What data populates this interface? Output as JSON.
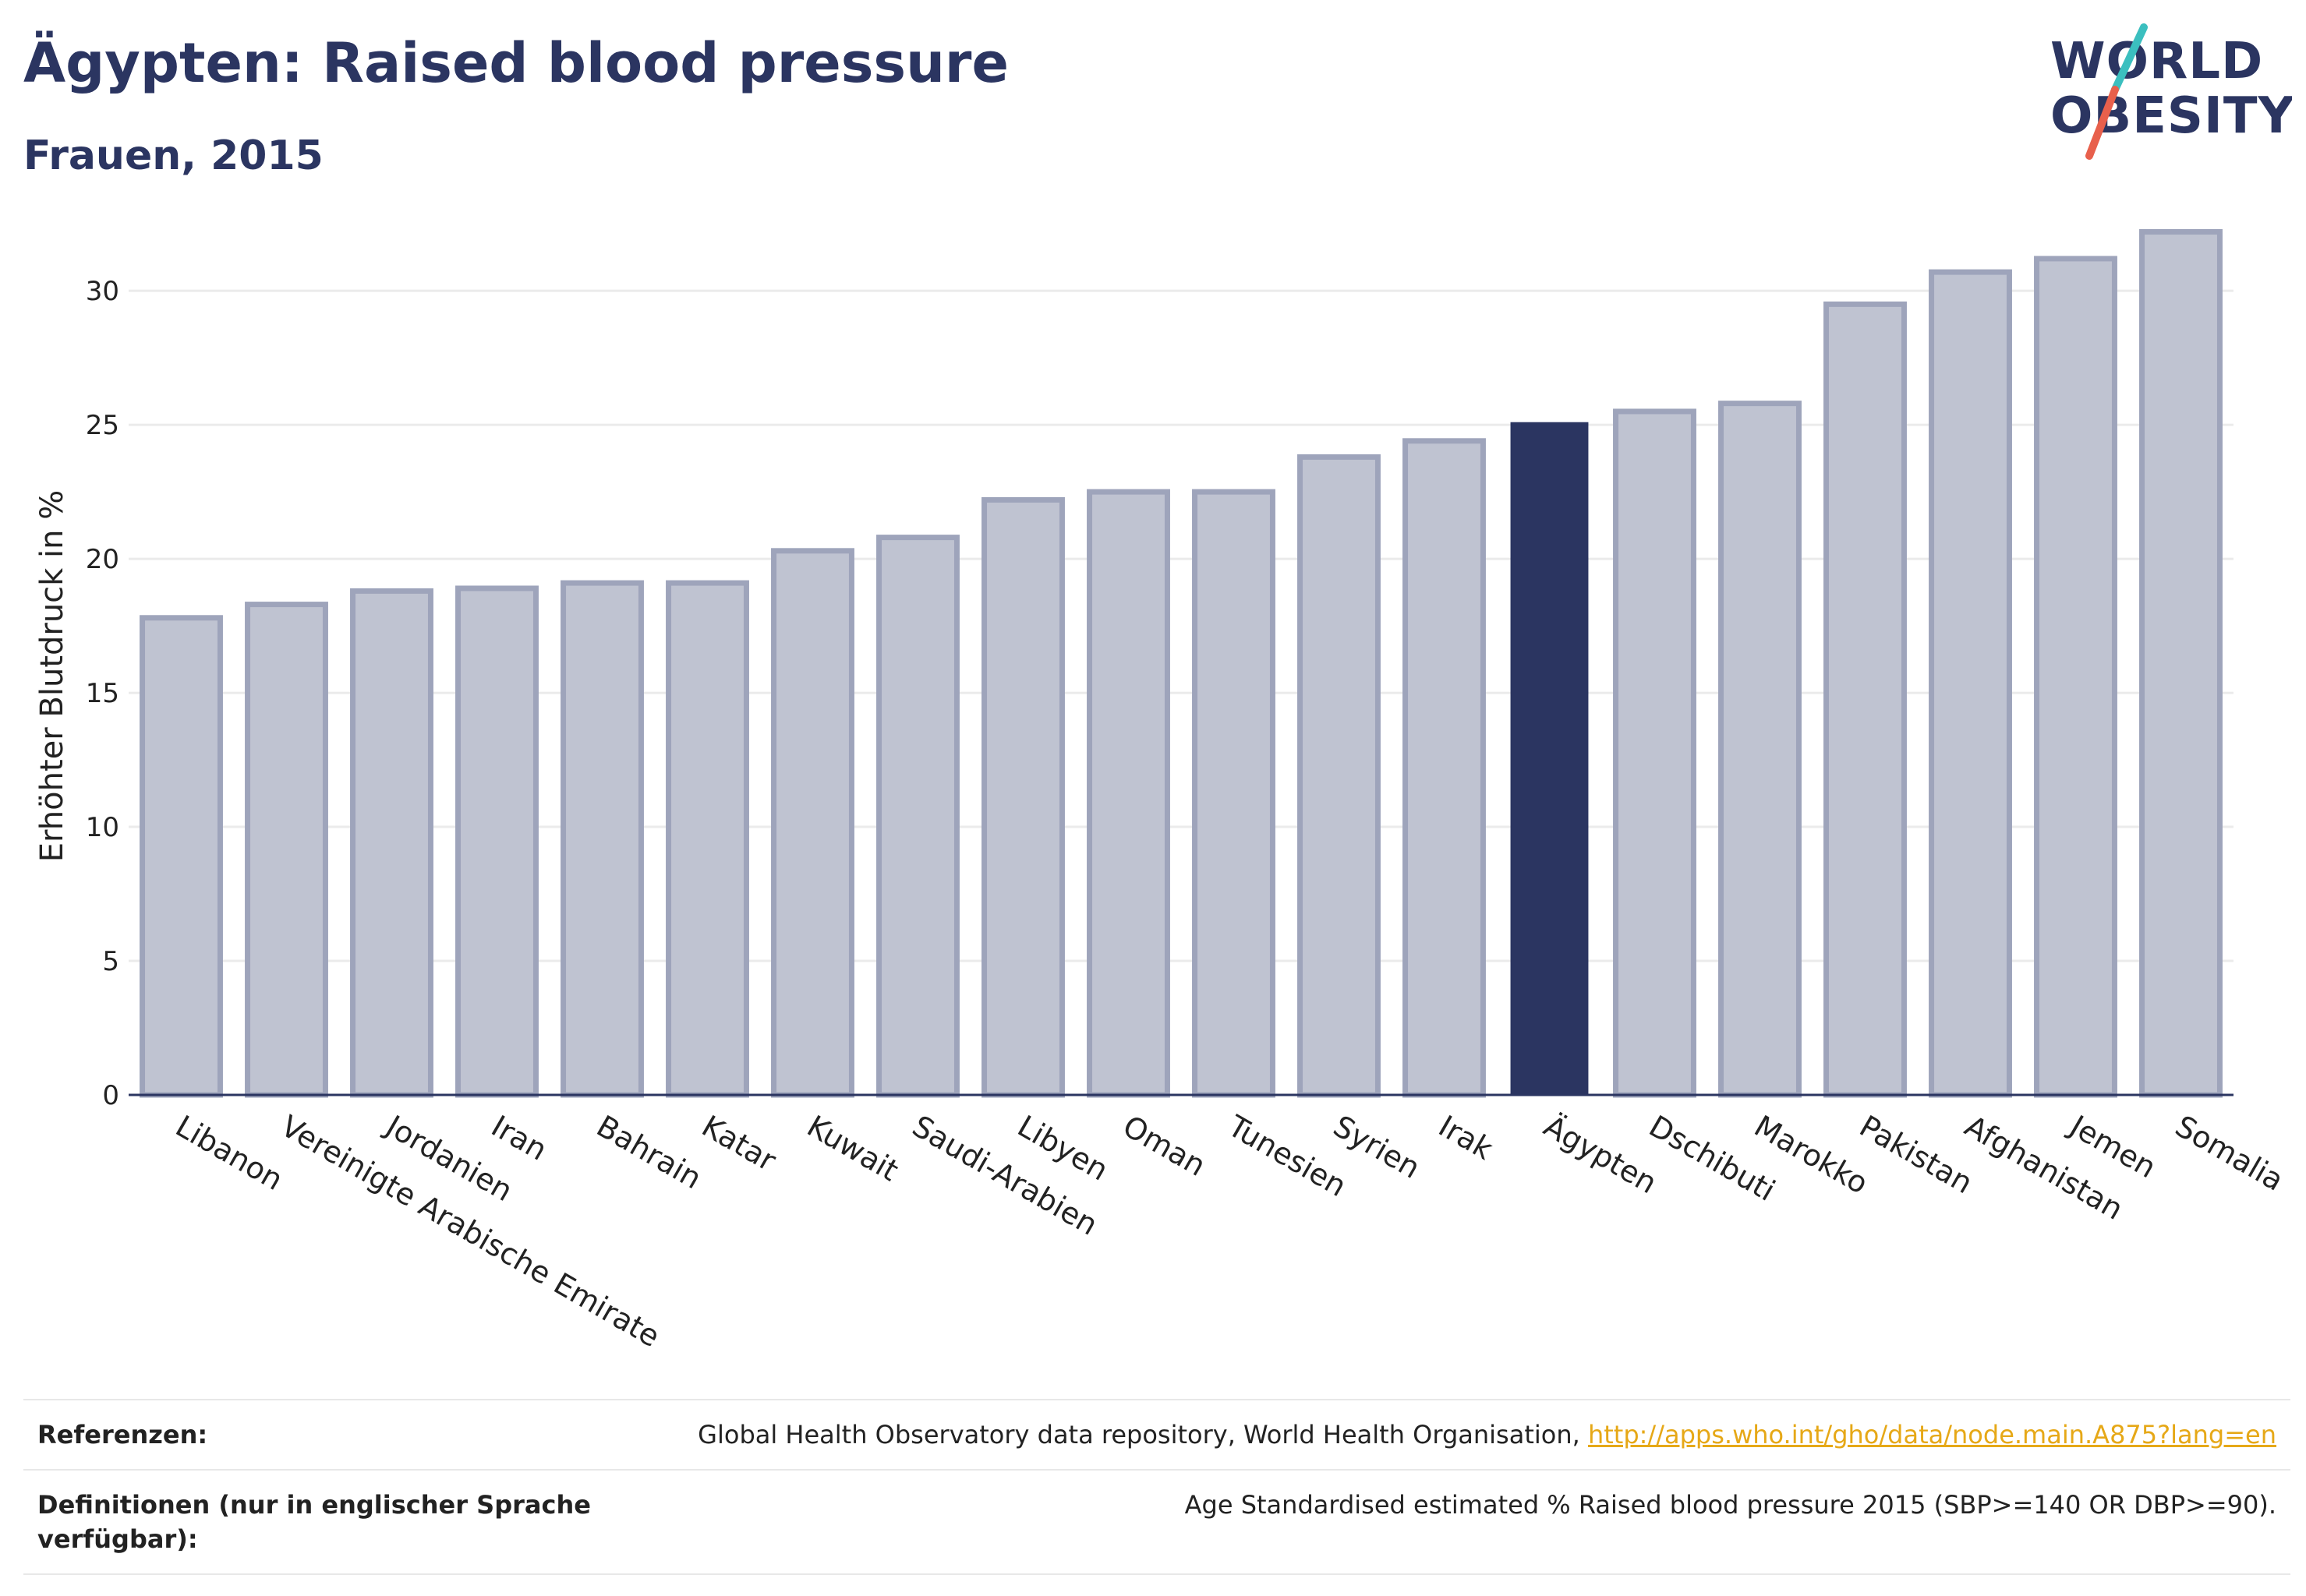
{
  "header": {
    "title": "Ägypten: Raised blood pressure",
    "subtitle": "Frauen, 2015"
  },
  "logo": {
    "line1": "WORLD",
    "line2": "OBESITY",
    "accent_colors": [
      "#3bbfbf",
      "#e8604c"
    ]
  },
  "colors": {
    "bar": "#bfc3d1",
    "bar_edge": "#9ea4bb",
    "highlight": "#2b3561",
    "grid": "#ebebeb",
    "axis": "#2b3561",
    "link": "#e6a817"
  },
  "chart_data": {
    "type": "bar",
    "title": "Ägypten: Raised blood pressure",
    "subtitle": "Frauen, 2015",
    "ylabel": "Erhöhter Blutdruck in %",
    "xlabel": "",
    "ylim": [
      0,
      33
    ],
    "yticks": [
      0,
      5,
      10,
      15,
      20,
      25,
      30
    ],
    "grid": true,
    "highlight": "Ägypten",
    "categories": [
      "Libanon",
      "Vereinigte Arabische Emirate",
      "Jordanien",
      "Iran",
      "Bahrain",
      "Katar",
      "Kuwait",
      "Saudi-Arabien",
      "Libyen",
      "Oman",
      "Tunesien",
      "Syrien",
      "Irak",
      "Ägypten",
      "Dschibuti",
      "Marokko",
      "Pakistan",
      "Afghanistan",
      "Jemen",
      "Somalia"
    ],
    "values": [
      17.8,
      18.3,
      18.8,
      18.9,
      19.1,
      19.1,
      20.3,
      20.8,
      22.2,
      22.5,
      22.5,
      23.8,
      24.4,
      25.1,
      25.5,
      25.8,
      29.5,
      30.7,
      31.2,
      32.2
    ]
  },
  "footer": {
    "references_label": "Referenzen:",
    "references_text": "Global Health Observatory data repository, World Health Organisation, ",
    "references_link": "http://apps.who.int/gho/data/node.main.A875?lang=en",
    "definitions_label": "Definitionen (nur in englischer Sprache verfügbar):",
    "definitions_text": "Age Standardised estimated % Raised blood pressure 2015 (SBP>=140 OR DBP>=90)."
  }
}
